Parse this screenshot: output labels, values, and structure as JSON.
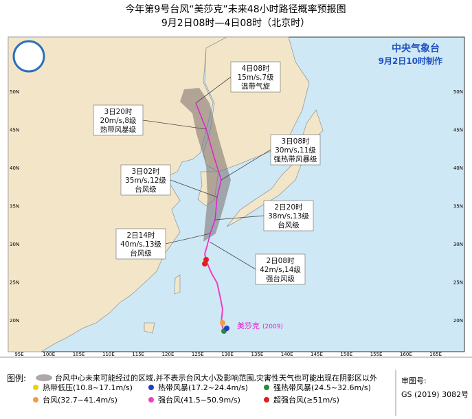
{
  "header": {
    "title": "今年第9号台风“美莎克”未来48小时路径概率预报图",
    "subtitle": "9月2日08时—4日08时（北京时）"
  },
  "agency": {
    "name": "中央气象台",
    "issued": "9月2日10时制作"
  },
  "map": {
    "lon_labels": [
      "95E",
      "100E",
      "105E",
      "110E",
      "115E",
      "120E",
      "125E",
      "130E",
      "135E",
      "140E",
      "145E",
      "150E",
      "155E",
      "160E",
      "165E"
    ],
    "lat_labels": [
      "50N",
      "45N",
      "40N",
      "35N",
      "30N",
      "25N",
      "20N"
    ],
    "typhoon_name": "美莎克",
    "typhoon_code": "(2009)"
  },
  "annotations": [
    {
      "time": "4日08时",
      "wind": "15m/s,7级",
      "grade": "温带气旋"
    },
    {
      "time": "3日20时",
      "wind": "20m/s,8级",
      "grade": "热带风暴级"
    },
    {
      "time": "3日08时",
      "wind": "30m/s,11级",
      "grade": "强热带风暴级"
    },
    {
      "time": "3日02时",
      "wind": "35m/s,12级",
      "grade": "台风级"
    },
    {
      "time": "2日20时",
      "wind": "38m/s,13级",
      "grade": "台风级"
    },
    {
      "time": "2日14时",
      "wind": "40m/s,13级",
      "grade": "台风级"
    },
    {
      "time": "2日08时",
      "wind": "42m/s,14级",
      "grade": "强台风级"
    }
  ],
  "legend": {
    "title": "图例:",
    "cone": "台风中心未来可能经过的区域,并不表示台风大小及影响范围,灾害性天气也可能出现在阴影区以外",
    "items": [
      {
        "label": "热带低压(10.8~17.1m/s)",
        "color": "#f0d000"
      },
      {
        "label": "热带风暴(17.2~24.4m/s)",
        "color": "#1f3fbf"
      },
      {
        "label": "强热带风暴(24.5~32.6m/s)",
        "color": "#2a8a3a"
      },
      {
        "label": "台风(32.7~41.4m/s)",
        "color": "#f0a040"
      },
      {
        "label": "强台风(41.5~50.9m/s)",
        "color": "#f040c0"
      },
      {
        "label": "超强台风(≥51m/s)",
        "color": "#e02020"
      }
    ]
  },
  "approval": {
    "label": "审图号:",
    "code": "GS (2019) 3082号"
  }
}
